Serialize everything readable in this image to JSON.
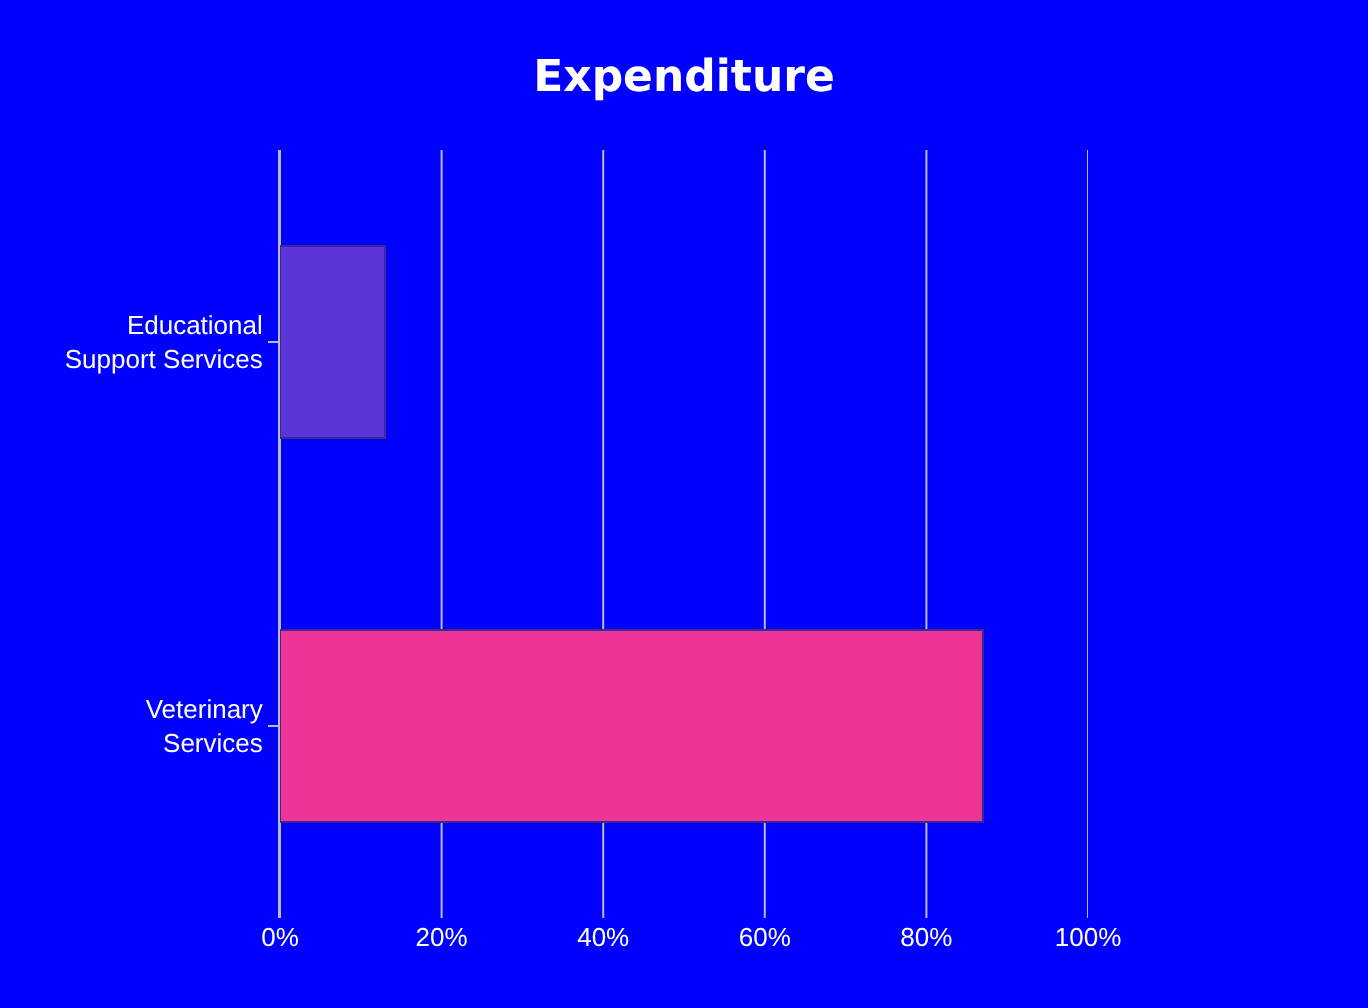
{
  "chart_data": {
    "type": "bar",
    "orientation": "horizontal",
    "title": "Expenditure",
    "categories": [
      "Educational Support Services",
      "Veterinary Services"
    ],
    "values": [
      13,
      87
    ],
    "colors": [
      "#5b35d8",
      "#ee3597"
    ],
    "xlim": [
      0,
      100
    ],
    "xticks": [
      {
        "value": 0,
        "label": "0%"
      },
      {
        "value": 20,
        "label": "20%"
      },
      {
        "value": 40,
        "label": "40%"
      },
      {
        "value": 60,
        "label": "60%"
      },
      {
        "value": 80,
        "label": "80%"
      },
      {
        "value": 100,
        "label": "100%"
      }
    ],
    "grid": "x"
  }
}
